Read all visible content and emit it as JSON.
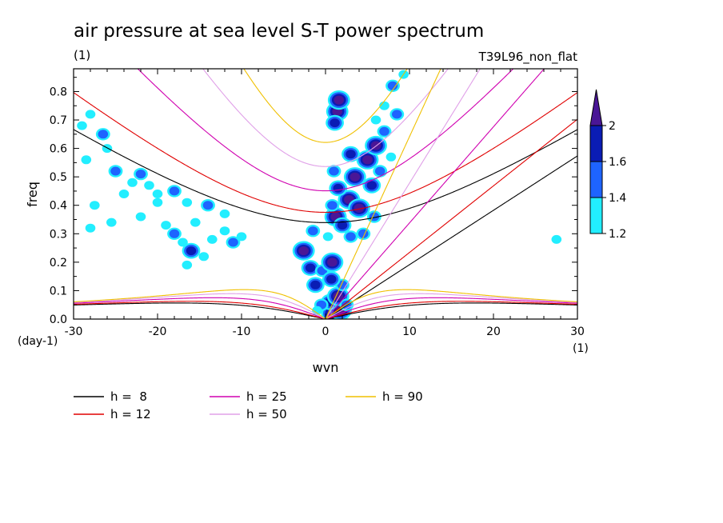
{
  "chart_data": {
    "type": "heatmap",
    "title": "air pressure at sea level S-T power spectrum",
    "subtitle_left": "(1)",
    "subtitle_right": "T39L96_non_flat",
    "xlabel": "wvn",
    "ylabel": "freq",
    "x_unit": "(1)",
    "y_unit": "(day-1)",
    "xlim": [
      -30,
      30
    ],
    "ylim": [
      0,
      0.88
    ],
    "xticks": [
      "-30",
      "-20",
      "-10",
      "0",
      "10",
      "20",
      "30"
    ],
    "xtick_values": [
      -30,
      -20,
      -10,
      0,
      10,
      20,
      30
    ],
    "yticks": [
      "0.0",
      "0.1",
      "0.2",
      "0.3",
      "0.4",
      "0.5",
      "0.6",
      "0.7",
      "0.8"
    ],
    "ytick_values": [
      0,
      0.1,
      0.2,
      0.3,
      0.4,
      0.5,
      0.6,
      0.7,
      0.8
    ],
    "colorbar": {
      "levels": [
        "1.2",
        "1.4",
        "1.6",
        "2"
      ],
      "level_values": [
        1.2,
        1.4,
        1.6,
        2.0
      ],
      "colors": [
        "#22eeff",
        "#1e64ff",
        "#0a1cb4",
        "#4a1696"
      ]
    },
    "dispersion_curves": [
      {
        "name": "h =  8",
        "h": 8,
        "color": "#000000"
      },
      {
        "name": "h = 12",
        "h": 12,
        "color": "#e00000"
      },
      {
        "name": "h = 25",
        "h": 25,
        "color": "#d000b0"
      },
      {
        "name": "h = 50",
        "h": 50,
        "color": "#e0a0e8"
      },
      {
        "name": "h = 90",
        "h": 90,
        "color": "#f0c000"
      }
    ],
    "spectral_blobs": [
      {
        "x": 0.8,
        "y": 0.02,
        "level": 4
      },
      {
        "x": 1.8,
        "y": 0.03,
        "level": 4
      },
      {
        "x": 0.5,
        "y": 0.06,
        "level": 3
      },
      {
        "x": 1.5,
        "y": 0.08,
        "level": 4
      },
      {
        "x": -0.5,
        "y": 0.05,
        "level": 2
      },
      {
        "x": -1.0,
        "y": 0.03,
        "level": 1
      },
      {
        "x": 2.5,
        "y": 0.05,
        "level": 2
      },
      {
        "x": 2.0,
        "y": 0.12,
        "level": 2
      },
      {
        "x": -1.2,
        "y": 0.12,
        "level": 3
      },
      {
        "x": -1.8,
        "y": 0.18,
        "level": 3
      },
      {
        "x": -2.6,
        "y": 0.24,
        "level": 4
      },
      {
        "x": -0.4,
        "y": 0.17,
        "level": 2
      },
      {
        "x": -1.5,
        "y": 0.31,
        "level": 2
      },
      {
        "x": 0.8,
        "y": 0.2,
        "level": 4
      },
      {
        "x": 0.7,
        "y": 0.14,
        "level": 3
      },
      {
        "x": 0.3,
        "y": 0.29,
        "level": 1
      },
      {
        "x": 1.4,
        "y": 0.73,
        "level": 4
      },
      {
        "x": 1.1,
        "y": 0.69,
        "level": 3
      },
      {
        "x": 1.6,
        "y": 0.77,
        "level": 4
      },
      {
        "x": 1.2,
        "y": 0.36,
        "level": 4
      },
      {
        "x": 2.8,
        "y": 0.42,
        "level": 4
      },
      {
        "x": 4.0,
        "y": 0.39,
        "level": 4
      },
      {
        "x": 1.5,
        "y": 0.46,
        "level": 3
      },
      {
        "x": 3.5,
        "y": 0.5,
        "level": 4
      },
      {
        "x": 5.0,
        "y": 0.56,
        "level": 4
      },
      {
        "x": 6.0,
        "y": 0.61,
        "level": 4
      },
      {
        "x": 3.0,
        "y": 0.58,
        "level": 3
      },
      {
        "x": 5.5,
        "y": 0.47,
        "level": 3
      },
      {
        "x": 0.8,
        "y": 0.4,
        "level": 2
      },
      {
        "x": 1.0,
        "y": 0.52,
        "level": 2
      },
      {
        "x": 2.0,
        "y": 0.33,
        "level": 3
      },
      {
        "x": 4.5,
        "y": 0.3,
        "level": 2
      },
      {
        "x": 3.0,
        "y": 0.29,
        "level": 2
      },
      {
        "x": 5.8,
        "y": 0.36,
        "level": 2
      },
      {
        "x": 7.0,
        "y": 0.66,
        "level": 2
      },
      {
        "x": 6.5,
        "y": 0.52,
        "level": 2
      },
      {
        "x": 7.8,
        "y": 0.57,
        "level": 1
      },
      {
        "x": 8.5,
        "y": 0.72,
        "level": 2
      },
      {
        "x": 7.0,
        "y": 0.75,
        "level": 1
      },
      {
        "x": 8.0,
        "y": 0.82,
        "level": 2
      },
      {
        "x": 9.3,
        "y": 0.86,
        "level": 1
      },
      {
        "x": 6.0,
        "y": 0.7,
        "level": 1
      },
      {
        "x": -29,
        "y": 0.68,
        "level": 1
      },
      {
        "x": -28,
        "y": 0.72,
        "level": 1
      },
      {
        "x": -26.5,
        "y": 0.65,
        "level": 2
      },
      {
        "x": -26,
        "y": 0.6,
        "level": 1
      },
      {
        "x": -28.5,
        "y": 0.56,
        "level": 1
      },
      {
        "x": -25,
        "y": 0.52,
        "level": 2
      },
      {
        "x": -23,
        "y": 0.48,
        "level": 1
      },
      {
        "x": -22,
        "y": 0.51,
        "level": 2
      },
      {
        "x": -21,
        "y": 0.47,
        "level": 1
      },
      {
        "x": -20,
        "y": 0.44,
        "level": 1
      },
      {
        "x": -24,
        "y": 0.44,
        "level": 1
      },
      {
        "x": -18,
        "y": 0.45,
        "level": 2
      },
      {
        "x": -16.5,
        "y": 0.41,
        "level": 1
      },
      {
        "x": -14,
        "y": 0.4,
        "level": 2
      },
      {
        "x": -12,
        "y": 0.37,
        "level": 1
      },
      {
        "x": -15.5,
        "y": 0.34,
        "level": 1
      },
      {
        "x": -25.5,
        "y": 0.34,
        "level": 1
      },
      {
        "x": -22,
        "y": 0.36,
        "level": 1
      },
      {
        "x": -19,
        "y": 0.33,
        "level": 1
      },
      {
        "x": -18,
        "y": 0.3,
        "level": 2
      },
      {
        "x": -17,
        "y": 0.27,
        "level": 1
      },
      {
        "x": -16,
        "y": 0.24,
        "level": 3
      },
      {
        "x": -14.5,
        "y": 0.22,
        "level": 1
      },
      {
        "x": -13.5,
        "y": 0.28,
        "level": 1
      },
      {
        "x": -16.5,
        "y": 0.19,
        "level": 1
      },
      {
        "x": -11,
        "y": 0.27,
        "level": 2
      },
      {
        "x": -10,
        "y": 0.29,
        "level": 1
      },
      {
        "x": -12,
        "y": 0.31,
        "level": 1
      },
      {
        "x": -20,
        "y": 0.41,
        "level": 1
      },
      {
        "x": -27.5,
        "y": 0.4,
        "level": 1
      },
      {
        "x": 27.5,
        "y": 0.28,
        "level": 1
      },
      {
        "x": -28,
        "y": 0.32,
        "level": 1
      }
    ]
  }
}
